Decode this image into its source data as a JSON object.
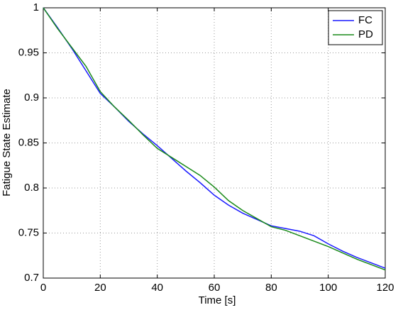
{
  "chart_data": {
    "type": "line",
    "xlabel": "Time [s]",
    "ylabel": "Fatigue State Estimate",
    "x": [
      0,
      5,
      10,
      15,
      20,
      25,
      30,
      35,
      40,
      45,
      50,
      55,
      60,
      65,
      70,
      75,
      80,
      85,
      90,
      95,
      100,
      105,
      110,
      115,
      120
    ],
    "series": [
      {
        "name": "FC",
        "color": "#1a1aff",
        "values": [
          1.0,
          0.978,
          0.955,
          0.93,
          0.905,
          0.89,
          0.874,
          0.86,
          0.847,
          0.833,
          0.819,
          0.806,
          0.792,
          0.781,
          0.772,
          0.765,
          0.758,
          0.755,
          0.752,
          0.747,
          0.738,
          0.73,
          0.723,
          0.717,
          0.711
        ]
      },
      {
        "name": "PD",
        "color": "#1a8a1a",
        "values": [
          1.0,
          0.977,
          0.956,
          0.935,
          0.907,
          0.89,
          0.875,
          0.859,
          0.844,
          0.834,
          0.824,
          0.814,
          0.801,
          0.786,
          0.775,
          0.766,
          0.757,
          0.753,
          0.747,
          0.741,
          0.735,
          0.728,
          0.721,
          0.715,
          0.709
        ]
      }
    ],
    "xlim": [
      0,
      120
    ],
    "xticks": [
      0,
      20,
      40,
      60,
      80,
      100,
      120
    ],
    "ylim": [
      0.7,
      1
    ],
    "yticks": [
      0.7,
      0.75,
      0.8,
      0.85,
      0.9,
      0.95,
      1
    ],
    "grid": true,
    "legend": "upper right"
  }
}
